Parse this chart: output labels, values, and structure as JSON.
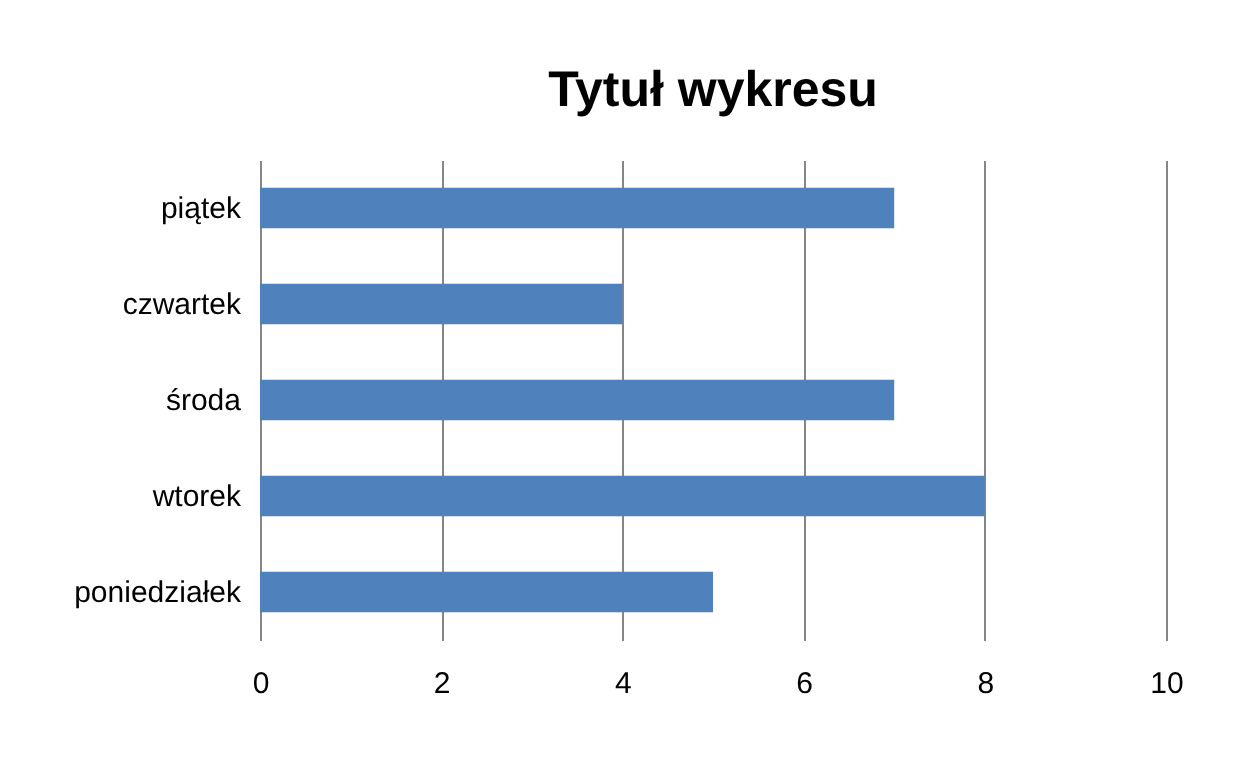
{
  "chart_data": {
    "type": "bar",
    "title": "Tytuł wykresu",
    "orientation": "horizontal",
    "categories": [
      "piątek",
      "czwartek",
      "środa",
      "wtorek",
      "poniedziałek"
    ],
    "series": [
      {
        "color": "#4f81bd",
        "values": [
          7,
          4,
          7,
          8,
          5
        ]
      }
    ],
    "xlim": [
      0,
      10
    ],
    "xticks": [
      0,
      2,
      4,
      6,
      8,
      10
    ],
    "grid": "x"
  }
}
